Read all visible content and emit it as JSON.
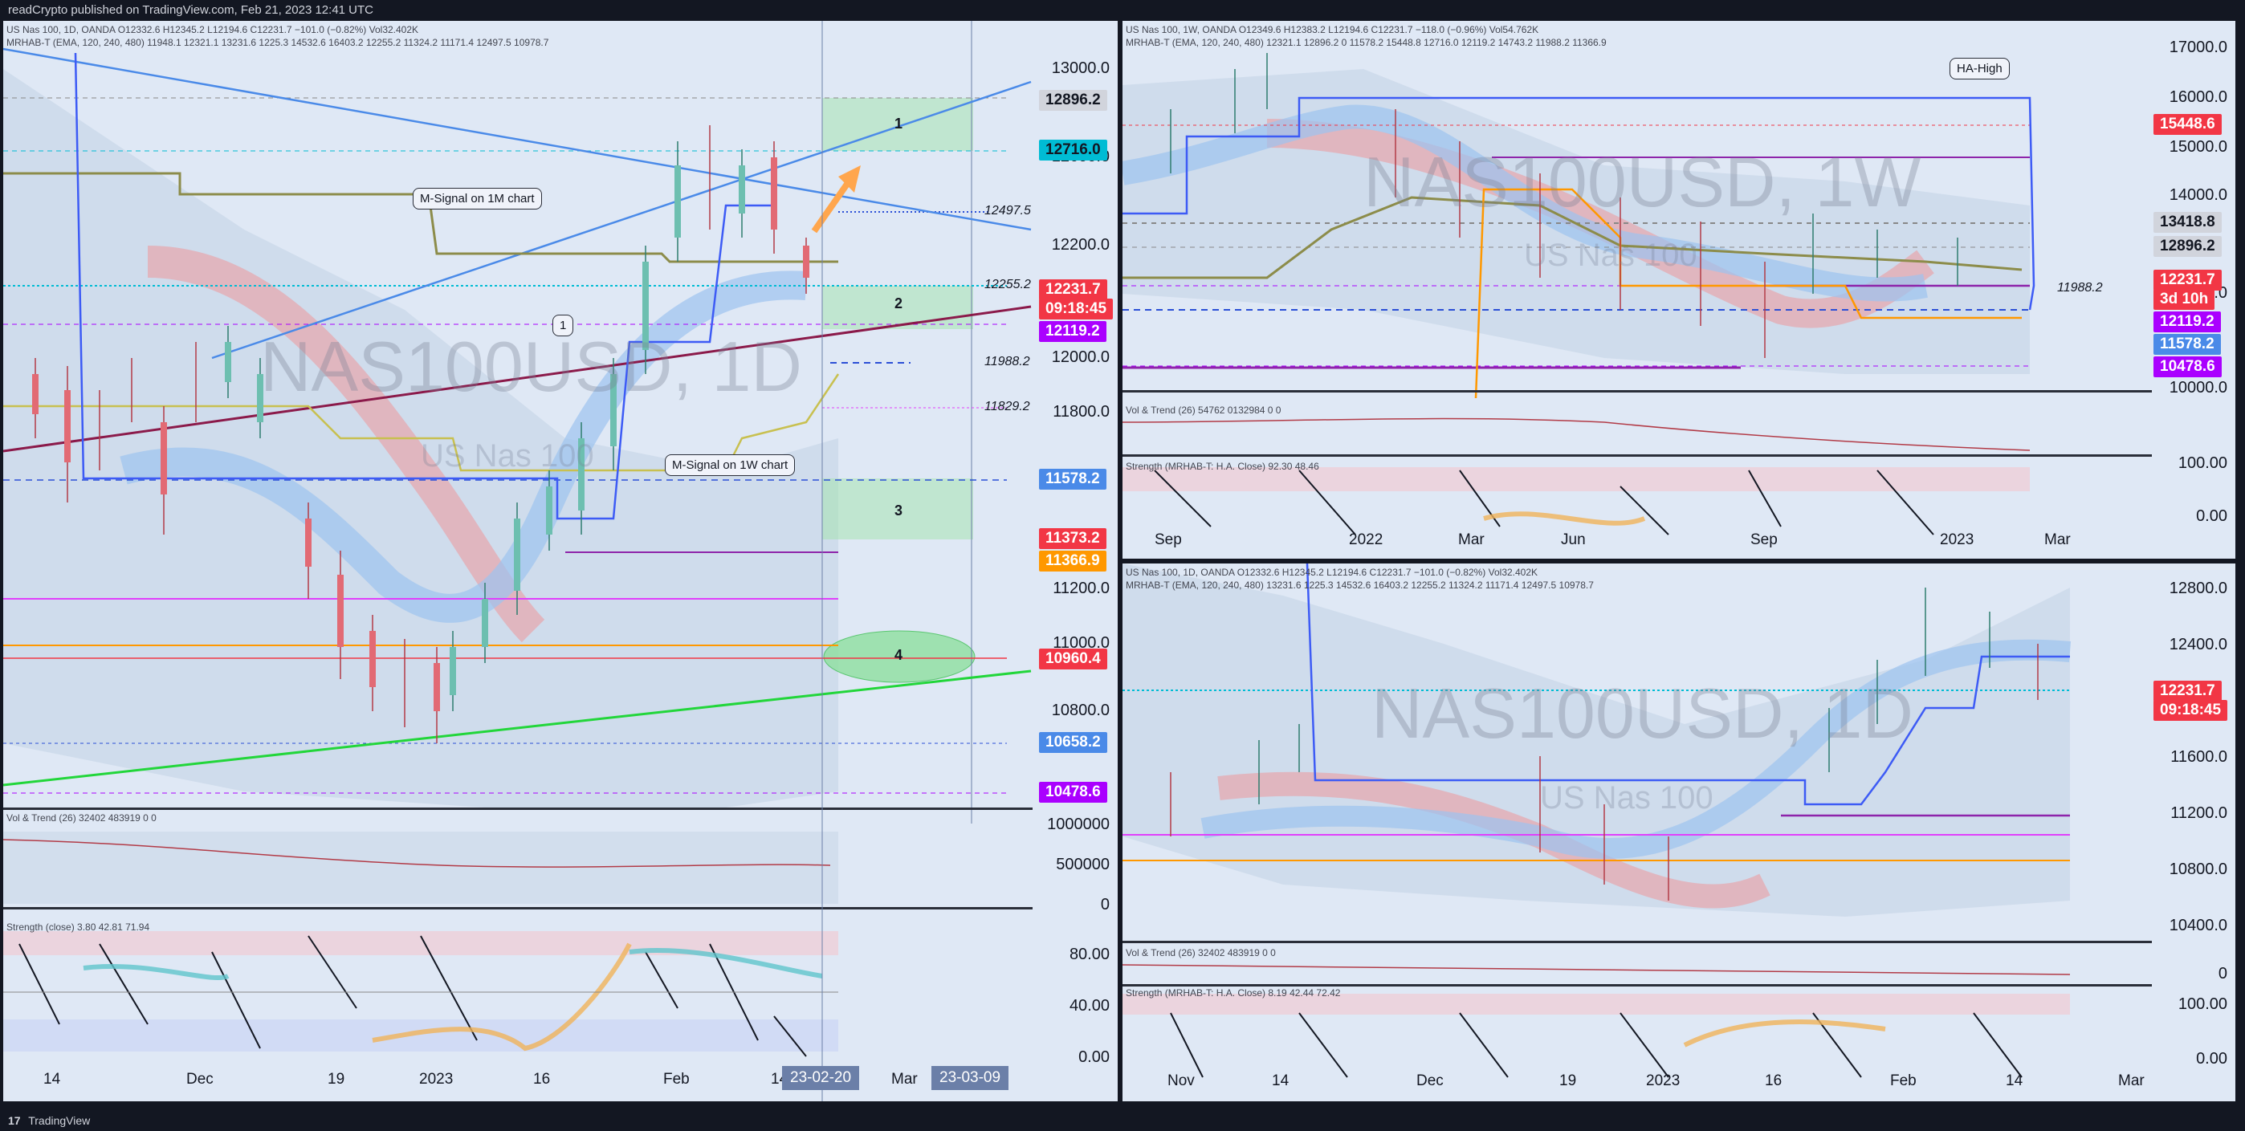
{
  "header": {
    "text": "readCrypto published on TradingView.com, Feb 21, 2023 12:41 UTC"
  },
  "footer": {
    "logo": "17",
    "brand": "TradingView"
  },
  "left": {
    "legend1": "US Nas 100, 1D, OANDA  O12332.6  H12345.2  L12194.6  C12231.7  −101.0 (−0.82%)  Vol32.402K",
    "legend2": "MRHAB-T (EMA, 120, 240, 480)  11948.1  12321.1  13231.6  1225.3  14532.6  16403.2  12255.2  11324.2  11171.4  12497.5  10978.7",
    "watermark": "NAS100USD, 1D",
    "watermark_sub": "US Nas 100",
    "axis": [
      "13000.0",
      "12800.0",
      "12600.0",
      "12400.0",
      "12200.0",
      "12000.0",
      "11800.0",
      "11600.0",
      "11400.0",
      "11200.0",
      "11000.0",
      "10800.0"
    ],
    "tags": [
      {
        "text": "12896.2",
        "color": "#d1d4dc",
        "fg": "#131722"
      },
      {
        "text": "12716.0",
        "color": "#00bcd4",
        "fg": "#131722"
      },
      {
        "text": "12231.7",
        "color": "#f23645",
        "fg": "#fff"
      },
      {
        "text": "09:18:45",
        "color": "#f23645",
        "fg": "#fff"
      },
      {
        "text": "12119.2",
        "color": "#aa00ff",
        "fg": "#fff"
      },
      {
        "text": "11578.2",
        "color": "#4a8ae8",
        "fg": "#fff"
      },
      {
        "text": "11373.2",
        "color": "#f23645",
        "fg": "#fff"
      },
      {
        "text": "11366.9",
        "color": "#ff9800",
        "fg": "#fff"
      },
      {
        "text": "10960.4",
        "color": "#f23645",
        "fg": "#fff"
      },
      {
        "text": "10658.2",
        "color": "#4a8ae8",
        "fg": "#fff"
      },
      {
        "text": "10478.6",
        "color": "#aa00ff",
        "fg": "#fff"
      }
    ],
    "level_labels": [
      "12497.5",
      "12255.2",
      "11988.2",
      "11829.2"
    ],
    "callouts": [
      "M-Signal on 1M chart",
      "M-Signal on 1W chart",
      "1"
    ],
    "zones": [
      "1",
      "2",
      "3",
      "4"
    ],
    "vol_label": "Vol & Trend (26)  32402  483919  0  0",
    "vol_axis": [
      "1000000",
      "500000",
      "0"
    ],
    "strength_label": "Strength (close)  3.80  42.81  71.94",
    "strength_axis": [
      "80.00",
      "40.00",
      "0.00"
    ],
    "xaxis": [
      "14",
      "Dec",
      "19",
      "2023",
      "16",
      "Feb",
      "14",
      "Mar"
    ],
    "dateboxes": [
      "23-02-20",
      "23-03-09"
    ]
  },
  "topright": {
    "legend1": "US Nas 100, 1W, OANDA  O12349.6  H12383.2  L12194.6  C12231.7  −118.0 (−0.96%)  Vol54.762K",
    "legend2": "MRHAB-T (EMA, 120, 240, 480)  12321.1  12896.2  0  11578.2  15448.8  12716.0  12119.2  14743.2  11988.2  11366.9",
    "watermark": "NAS100USD, 1W",
    "watermark_sub": "US Nas 100",
    "axis": [
      "17000.0",
      "16000.0",
      "15000.0",
      "14000.0",
      "13000.0",
      "12000.0",
      "11000.0",
      "10000.0"
    ],
    "tags": [
      {
        "text": "15448.6",
        "color": "#f23645",
        "fg": "#fff"
      },
      {
        "text": "13418.8",
        "color": "#d1d4dc",
        "fg": "#131722"
      },
      {
        "text": "12896.2",
        "color": "#d1d4dc",
        "fg": "#131722"
      },
      {
        "text": "12231.7",
        "color": "#f23645",
        "fg": "#fff"
      },
      {
        "text": "3d 10h",
        "color": "#f23645",
        "fg": "#fff"
      },
      {
        "text": "12119.2",
        "color": "#aa00ff",
        "fg": "#fff"
      },
      {
        "text": "11578.2",
        "color": "#4a8ae8",
        "fg": "#fff"
      },
      {
        "text": "10478.6",
        "color": "#aa00ff",
        "fg": "#fff"
      }
    ],
    "level_label": "11988.2",
    "callout": "HA-High",
    "vol_label": "Vol & Trend (26)  54762  0132984  0  0",
    "strength_label": "Strength (MRHAB-T: H.A. Close)  92.30  48.46",
    "strength_axis": [
      "100.00",
      "0.00"
    ],
    "xaxis": [
      "Sep",
      "2022",
      "Mar",
      "Jun",
      "Sep",
      "2023",
      "Mar"
    ]
  },
  "bottomright": {
    "legend1": "US Nas 100, 1D, OANDA  O12332.6  H12345.2  L12194.6  C12231.7  −101.0 (−0.82%)  Vol32.402K",
    "legend2": "MRHAB-T (EMA, 120, 240, 480)  13231.6  1225.3  14532.6  16403.2  12255.2  11324.2  11171.4  12497.5  10978.7",
    "watermark": "NAS100USD, 1D",
    "watermark_sub": "US Nas 100",
    "axis": [
      "12800.0",
      "12400.0",
      "12000.0",
      "11600.0",
      "11200.0",
      "10800.0",
      "10400.0"
    ],
    "tags": [
      {
        "text": "12231.7",
        "color": "#f23645",
        "fg": "#fff"
      },
      {
        "text": "09:18:45",
        "color": "#f23645",
        "fg": "#fff"
      }
    ],
    "vol_label": "Vol & Trend (26)  32402  483919  0  0",
    "vol_axis": [
      "0"
    ],
    "strength_label": "Strength (MRHAB-T: H.A. Close)  8.19  42.44  72.42",
    "strength_axis": [
      "100.00",
      "0.00"
    ],
    "xaxis": [
      "Nov",
      "14",
      "Dec",
      "19",
      "2023",
      "16",
      "Feb",
      "14",
      "Mar"
    ]
  }
}
